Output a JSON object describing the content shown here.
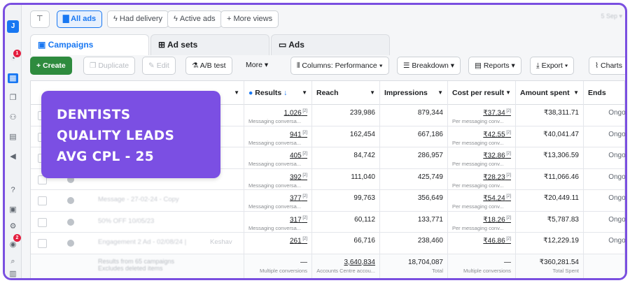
{
  "rail": {
    "avatar": "J",
    "badges": [
      "1",
      "2"
    ]
  },
  "topbar": {
    "filters": [
      "All ads",
      "Had delivery",
      "Active ads",
      "More views"
    ],
    "date": "5 Sep"
  },
  "tabs": [
    "Campaigns",
    "Ad sets",
    "Ads"
  ],
  "toolbar": {
    "create": "Create",
    "duplicate": "Duplicate",
    "edit": "Edit",
    "ab_test": "A/B test",
    "more": "More",
    "columns": "Columns: Performance",
    "breakdown": "Breakdown",
    "reports": "Reports",
    "export": "Export",
    "charts": "Charts"
  },
  "columns": [
    "Results",
    "Reach",
    "Impressions",
    "Cost per result",
    "Amount spent",
    "Ends"
  ],
  "rows": [
    {
      "name": "",
      "results": "1,026",
      "results_sub": "Messaging conversa...",
      "reach": "239,986",
      "impressions": "879,344",
      "cpr": "₹37.34",
      "cpr_sub": "Per messaging conv...",
      "spent": "₹38,311.71",
      "ends": "Ongoing"
    },
    {
      "name": "",
      "results": "941",
      "results_sub": "Messaging conversa...",
      "reach": "162,454",
      "impressions": "667,186",
      "cpr": "₹42.55",
      "cpr_sub": "Per messaging conv...",
      "spent": "₹40,041.47",
      "ends": "Ongoing"
    },
    {
      "name": "",
      "results": "405",
      "results_sub": "Messaging conversa...",
      "reach": "84,742",
      "impressions": "286,957",
      "cpr": "₹32.86",
      "cpr_sub": "Per messaging conv...",
      "spent": "₹13,306.59",
      "ends": "Ongoing"
    },
    {
      "name": "",
      "results": "392",
      "results_sub": "Messaging conversa...",
      "reach": "111,040",
      "impressions": "425,749",
      "cpr": "₹28.23",
      "cpr_sub": "Per messaging conv...",
      "spent": "₹11,066.46",
      "ends": "Ongoing"
    },
    {
      "name": "Message - 27-02-24 - Copy",
      "results": "377",
      "results_sub": "Messaging conversa...",
      "reach": "99,763",
      "impressions": "356,649",
      "cpr": "₹54.24",
      "cpr_sub": "Per messaging conv...",
      "spent": "₹20,449.11",
      "ends": "Ongoing"
    },
    {
      "name": "50% OFF 10/05/23",
      "results": "317",
      "results_sub": "Messaging conversa...",
      "reach": "60,112",
      "impressions": "133,771",
      "cpr": "₹18.26",
      "cpr_sub": "Per messaging conv...",
      "spent": "₹5,787.83",
      "ends": "Ongoing"
    },
    {
      "name": "Engagement 2 Ad - 02/08/24 | ",
      "name_tail": "Keshav",
      "results": "261",
      "results_sub": "",
      "reach": "66,716",
      "impressions": "238,460",
      "cpr": "₹46.86",
      "cpr_sub": "",
      "spent": "₹12,229.19",
      "ends": "Ongoing"
    }
  ],
  "totals": {
    "name": "Results from 65 campaigns",
    "name_sub": "Excludes deleted items",
    "results": "—",
    "results_sub": "Multiple conversions",
    "reach": "3,640,834",
    "reach_sub": "Accounts Centre accou...",
    "impressions": "18,704,087",
    "impressions_sub": "Total",
    "cpr": "—",
    "cpr_sub": "Multiple conversions",
    "spent": "₹360,281.54",
    "spent_sub": "Total Spent"
  },
  "overlay": [
    "DENTISTS",
    "QUALITY LEADS",
    "AVG CPL - 25"
  ],
  "colors": {
    "accent": "#1877f2",
    "overlay": "#7b4fe3",
    "create": "#2e8b3e"
  }
}
